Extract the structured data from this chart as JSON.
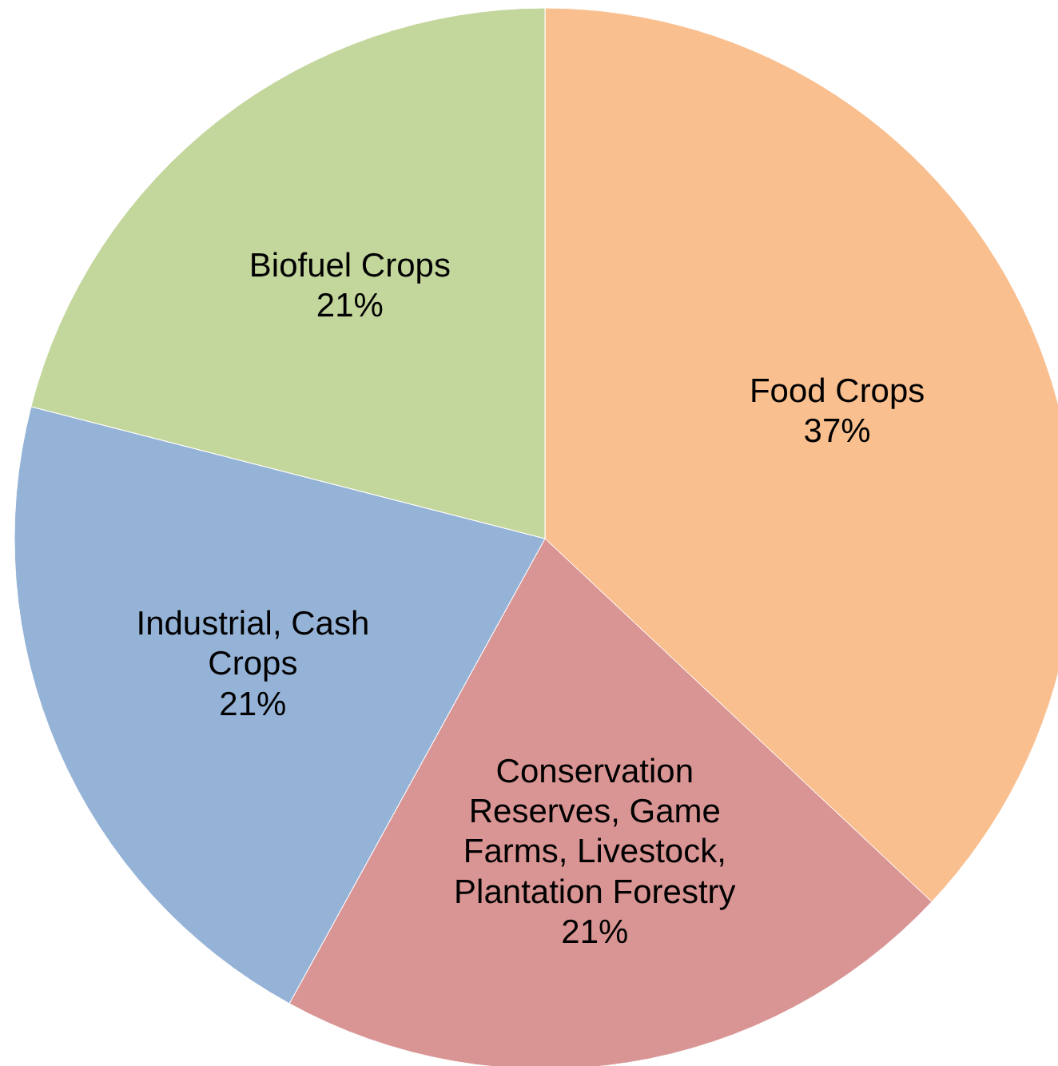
{
  "chart_data": {
    "type": "pie",
    "categories": [
      "Food Crops",
      "Conservation Reserves, Game Farms, Livestock, Plantation Forestry",
      "Industrial, Cash Crops",
      "Biofuel Crops"
    ],
    "values": [
      37,
      21,
      21,
      21
    ],
    "value_labels": [
      "37%",
      "21%",
      "21%",
      "21%"
    ],
    "colors": [
      "#f9bf8f",
      "#d99594",
      "#95b3d7",
      "#c3d69b"
    ]
  }
}
